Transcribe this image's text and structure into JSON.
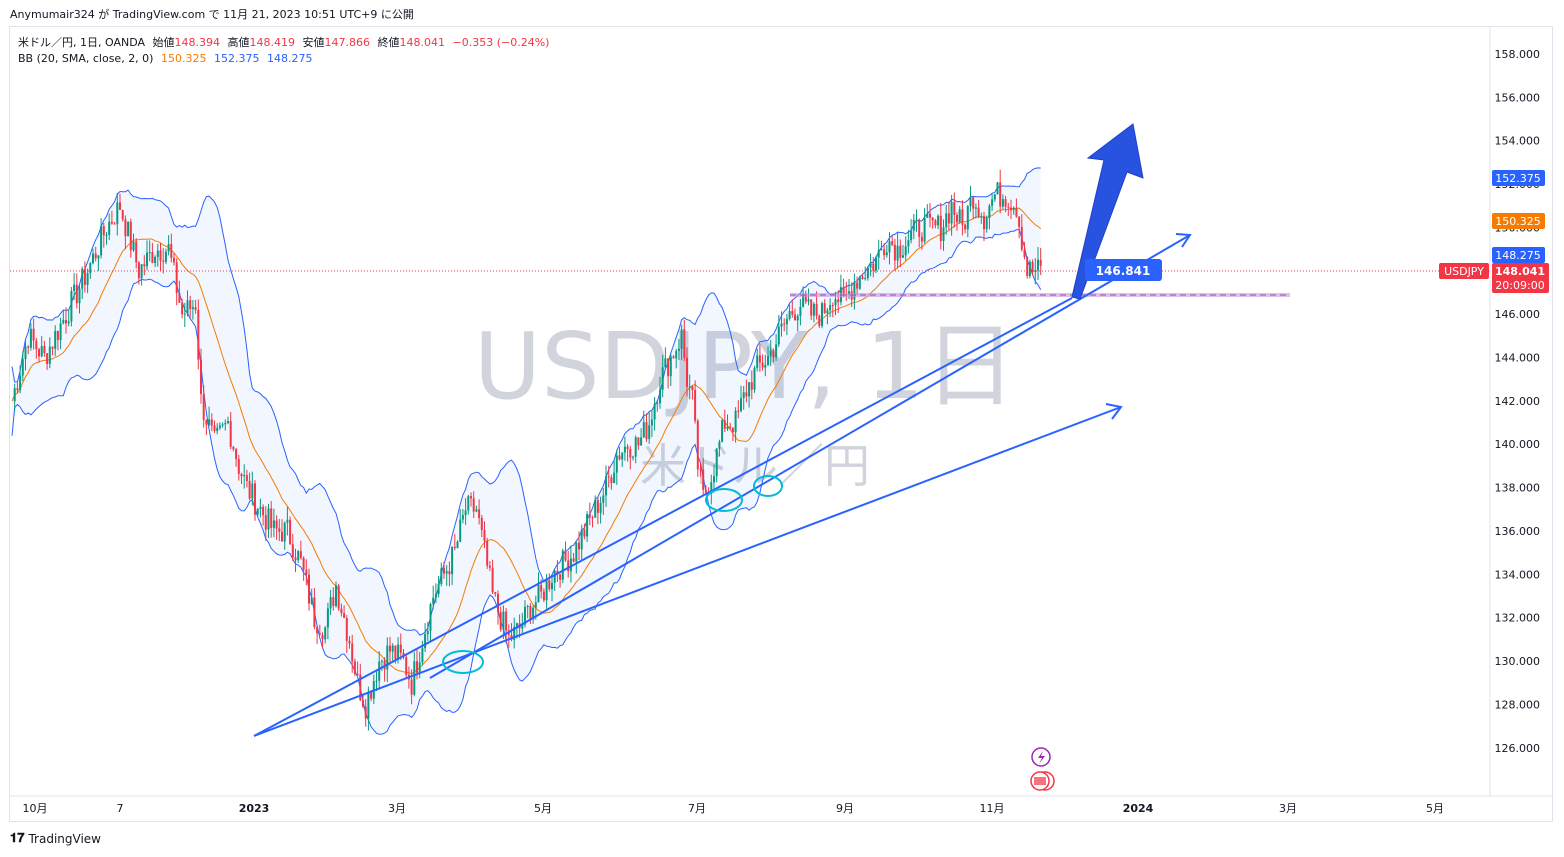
{
  "header": {
    "published": "Anymumair324 が TradingView.com で 11月 21, 2023 10:51 UTC+9 に公開"
  },
  "legend": {
    "symbol": "米ドル／円, 1日, OANDA",
    "o_label": "始値",
    "o": "148.394",
    "h_label": "高値",
    "h": "148.419",
    "l_label": "安値",
    "l": "147.866",
    "c_label": "終値",
    "c": "148.041",
    "chg": "−0.353 (−0.24%)",
    "bb_label": "BB (20, SMA, close, 2, 0)",
    "bb_mid": "150.325",
    "bb_up": "152.375",
    "bb_low": "148.275"
  },
  "watermark": {
    "main": "USDJPY, 1日",
    "sub": "米ドル／円"
  },
  "footer": {
    "brand": "TradingView"
  },
  "colors": {
    "up": "#089981",
    "down": "#f23645",
    "basis": "#f57c00",
    "band": "#2962ff",
    "line": "#2962ff",
    "circle": "#00bcd4",
    "level": "#9c27b0"
  },
  "chart_data": {
    "type": "candlestick",
    "y_ticks": [
      "158.000",
      "156.000",
      "154.000",
      "152.000",
      "150.000",
      "148.000",
      "146.000",
      "144.000",
      "142.000",
      "140.000",
      "138.000",
      "136.000",
      "134.000",
      "132.000",
      "130.000",
      "128.000",
      "126.000"
    ],
    "x_ticks": [
      "10月",
      "7",
      "2023",
      "3月",
      "5月",
      "7月",
      "9月",
      "11月",
      "2024",
      "3月",
      "5月"
    ],
    "ylim": [
      125,
      159
    ],
    "price_labels": {
      "bb_up": "152.375",
      "bb_mid": "150.325",
      "bb_low": "148.275",
      "symbol": "USDJPY",
      "last": "148.041",
      "countdown": "20:09:00"
    },
    "annotation_level": "146.841",
    "path_points": [
      [
        0,
        142
      ],
      [
        6,
        145
      ],
      [
        12,
        144
      ],
      [
        20,
        146
      ],
      [
        28,
        148
      ],
      [
        35,
        150
      ],
      [
        40,
        151
      ],
      [
        47,
        148
      ],
      [
        53,
        149
      ],
      [
        58,
        149
      ],
      [
        63,
        146
      ],
      [
        68,
        146.5
      ],
      [
        70,
        142
      ],
      [
        75,
        140
      ],
      [
        80,
        141
      ],
      [
        84,
        139
      ],
      [
        87,
        138
      ],
      [
        92,
        137
      ],
      [
        97,
        136
      ],
      [
        102,
        136
      ],
      [
        107,
        134.5
      ],
      [
        112,
        132
      ],
      [
        116,
        131.5
      ],
      [
        120,
        133.5
      ],
      [
        125,
        131
      ],
      [
        128,
        129
      ],
      [
        131,
        128
      ],
      [
        136,
        130
      ],
      [
        140,
        130.5
      ],
      [
        145,
        130
      ],
      [
        148,
        129
      ],
      [
        152,
        131
      ],
      [
        156,
        133
      ],
      [
        160,
        134
      ],
      [
        164,
        135
      ],
      [
        168,
        137
      ],
      [
        172,
        137
      ],
      [
        175,
        135
      ],
      [
        178,
        133
      ],
      [
        181,
        132
      ],
      [
        184,
        131
      ],
      [
        188,
        131.5
      ],
      [
        192,
        132.5
      ],
      [
        196,
        133
      ],
      [
        200,
        134
      ],
      [
        204,
        134.5
      ],
      [
        208,
        135
      ],
      [
        212,
        136
      ],
      [
        216,
        137
      ],
      [
        220,
        138
      ],
      [
        224,
        139.5
      ],
      [
        228,
        140
      ],
      [
        232,
        140
      ],
      [
        236,
        141
      ],
      [
        240,
        143
      ],
      [
        244,
        144
      ],
      [
        248,
        145
      ],
      [
        250,
        143
      ],
      [
        252,
        142
      ],
      [
        254,
        139
      ],
      [
        256,
        137.5
      ],
      [
        260,
        139
      ],
      [
        264,
        141
      ],
      [
        268,
        141
      ],
      [
        272,
        142.5
      ],
      [
        276,
        143.5
      ],
      [
        280,
        144
      ],
      [
        284,
        145
      ],
      [
        288,
        146
      ],
      [
        292,
        146.5
      ],
      [
        296,
        146
      ],
      [
        300,
        146
      ],
      [
        304,
        147
      ],
      [
        308,
        146.5
      ],
      [
        312,
        147.5
      ],
      [
        316,
        148
      ],
      [
        320,
        148.5
      ],
      [
        324,
        149.5
      ],
      [
        328,
        149
      ],
      [
        332,
        149.5
      ],
      [
        336,
        150
      ],
      [
        340,
        150
      ],
      [
        344,
        150
      ],
      [
        348,
        151
      ],
      [
        352,
        150
      ],
      [
        356,
        151.5
      ],
      [
        360,
        150.5
      ],
      [
        364,
        151.5
      ],
      [
        368,
        151.5
      ],
      [
        372,
        151
      ],
      [
        374,
        149.5
      ],
      [
        376,
        148
      ]
    ],
    "trendlines": [
      {
        "from": [
          "2022-11-22",
          126.6
        ],
        "to": [
          "2023-11-28",
          146.9
        ]
      },
      {
        "from": [
          "2023-03-10",
          129.1
        ],
        "to": [
          "2023-12-20",
          149.0
        ]
      },
      {
        "from": [
          "2022-11-22",
          126.6
        ],
        "to": [
          "2023-12-14",
          141.7
        ]
      }
    ],
    "marked_lows": [
      "2023-03-24",
      "2023-07-28",
      "2023-08-04"
    ],
    "projection_arrow": {
      "from": [
        "2023-11-28",
        146.9
      ],
      "to": [
        "2023-12-10",
        154.8
      ]
    }
  }
}
